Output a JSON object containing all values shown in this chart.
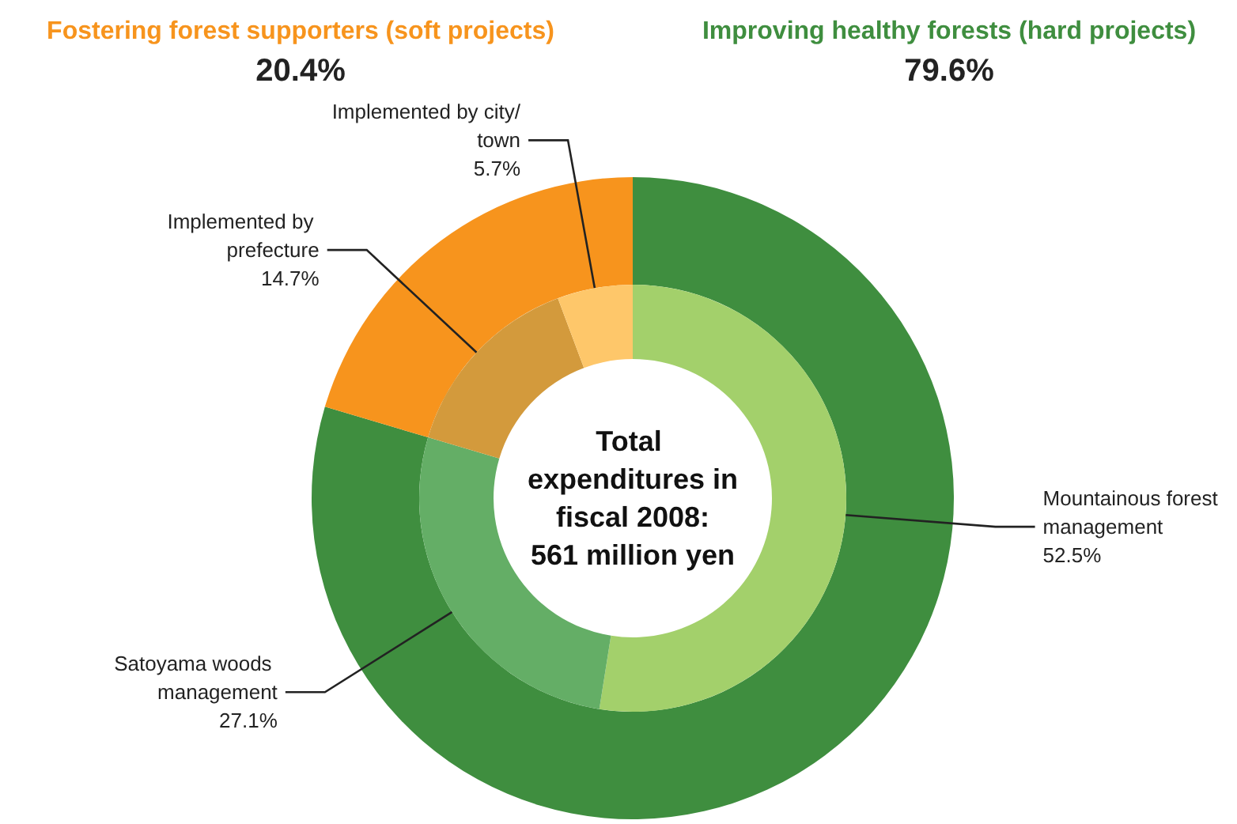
{
  "chart_data": [
    {
      "type": "donut",
      "categories": [
        "Improving healthy forests (hard projects)",
        "Fostering forest supporters (soft projects)"
      ],
      "values": [
        79.6,
        20.4
      ],
      "colors": [
        "#3f8e3f",
        "#f7941d"
      ],
      "value_labels": [
        "79.6%",
        "20.4%"
      ],
      "annotations": [
        "Total expenditures in fiscal 2008: 561 million yen"
      ]
    },
    {
      "type": "donut",
      "categories": [
        "Mountainous forest management",
        "Satoyama woods management",
        "Implemented by prefecture",
        "Implemented by city/town"
      ],
      "values": [
        52.5,
        27.1,
        14.7,
        5.7
      ],
      "colors": [
        "#a3d06b",
        "#64ae66",
        "#d39a3c",
        "#fec76a"
      ],
      "value_labels": [
        "52.5%",
        "27.1%",
        "14.7%",
        "5.7%"
      ]
    }
  ]
}
